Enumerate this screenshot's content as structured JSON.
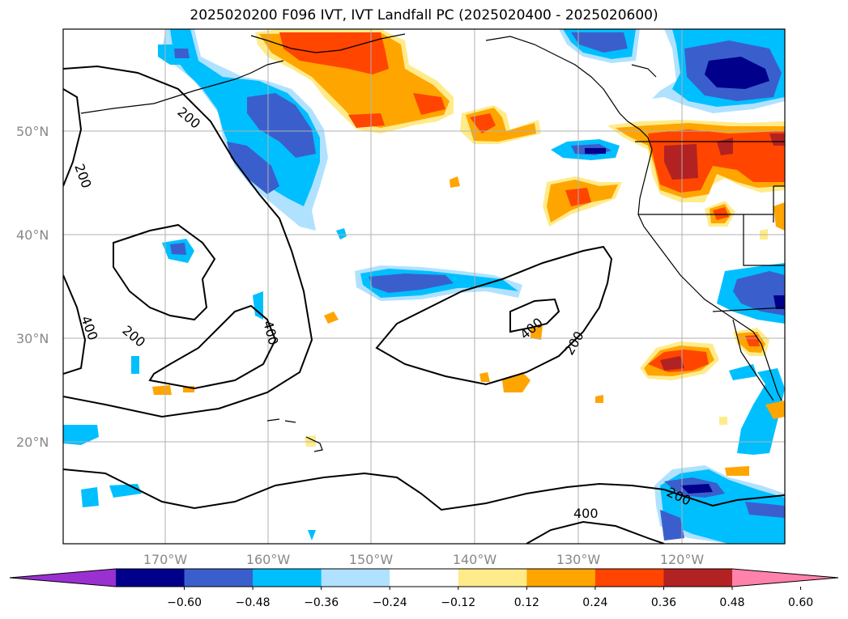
{
  "title": "2025020200 F096 IVT, IVT Landfall PC (2025020400 - 2025020600)",
  "lat_labels": [
    "50°N",
    "40°N",
    "30°N",
    "20°N"
  ],
  "lon_labels": [
    "170°W",
    "160°W",
    "150°W",
    "140°W",
    "130°W",
    "120°W"
  ],
  "contour_labels": [
    "200",
    "200",
    "400",
    "200",
    "400",
    "400",
    "200",
    "200",
    "400"
  ],
  "colorbar": {
    "ticks": [
      "−0.60",
      "−0.48",
      "−0.36",
      "−0.24",
      "−0.12",
      "0.12",
      "0.24",
      "0.36",
      "0.48",
      "0.60"
    ],
    "colors": [
      "#9b30d0",
      "#00008b",
      "#3a5fcd",
      "#00bfff",
      "#b0e2ff",
      "#ffffff",
      "#ffeb8a",
      "#ffa500",
      "#ff4500",
      "#b22222",
      "#ff82ab"
    ]
  },
  "colors": {
    "grid": "#b0b0b0",
    "coast": "#000000",
    "contour": "#000000"
  }
}
